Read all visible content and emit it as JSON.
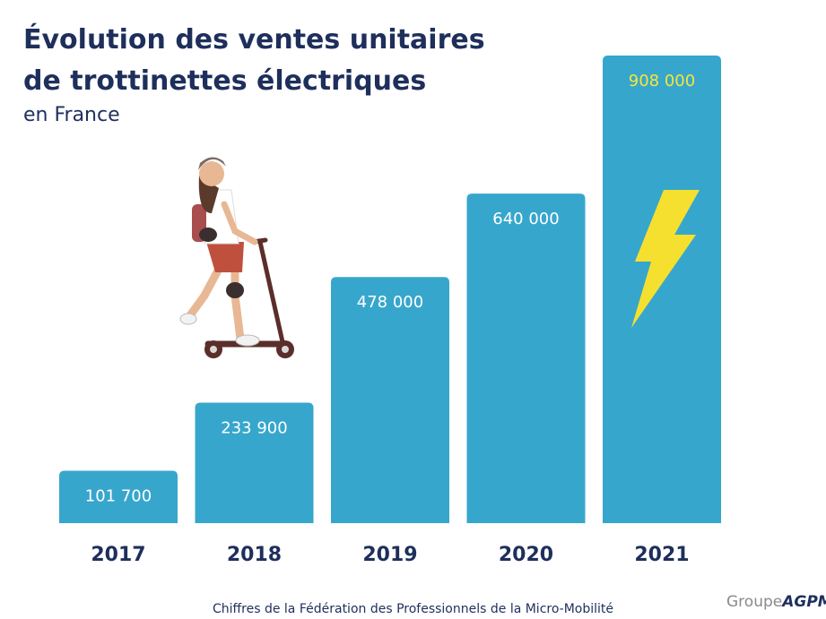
{
  "title_line1": "Évolution des ventes unitaires",
  "title_line2": "de trottinettes électriques",
  "subtitle": "en France",
  "source": "Chiffres de la Fédération des Professionnels de la Micro-Mobilité",
  "logo": {
    "prefix": "Groupe",
    "brand": "AGPM"
  },
  "colors": {
    "bar": "#37a6cc",
    "title": "#1e2f5c",
    "value_label": "#ffffff",
    "highlight_label": "#f5e63a",
    "lightning": "#f6e02f"
  },
  "chart_data": {
    "type": "bar",
    "title": "Évolution des ventes unitaires de trottinettes électriques",
    "subtitle": "en France",
    "categories": [
      "2017",
      "2018",
      "2019",
      "2020",
      "2021"
    ],
    "values": [
      101700,
      233900,
      478000,
      640000,
      908000
    ],
    "value_labels": [
      "101 700",
      "233 900",
      "478 000",
      "640 000",
      "908 000"
    ],
    "highlighted_index": 4,
    "ylim": [
      0,
      908000
    ],
    "grid": false,
    "legend": "none",
    "decorations": [
      "scooter-rider-illustration",
      "lightning-bolt-icon"
    ]
  }
}
